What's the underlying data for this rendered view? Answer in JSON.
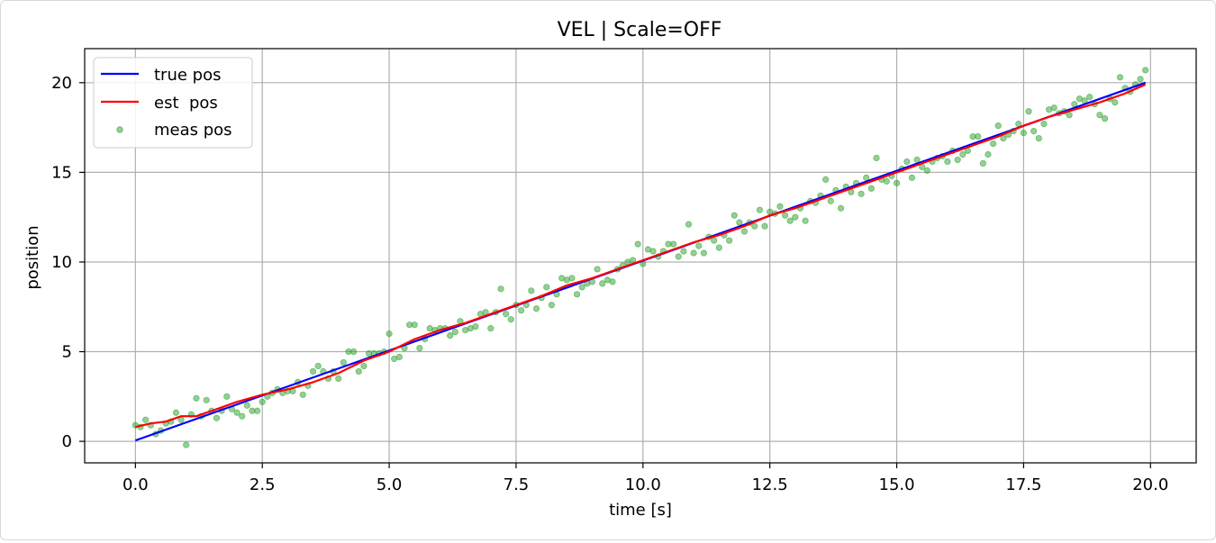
{
  "chart_data": {
    "type": "line",
    "title": "VEL  |  Scale=OFF",
    "xlabel": "time [s]",
    "ylabel": "position",
    "xlim": [
      -1.0,
      20.9
    ],
    "ylim": [
      -1.2,
      21.9
    ],
    "xticks": [
      0.0,
      2.5,
      5.0,
      7.5,
      10.0,
      12.5,
      15.0,
      17.5,
      20.0
    ],
    "xtick_labels": [
      "0.0",
      "2.5",
      "5.0",
      "7.5",
      "10.0",
      "12.5",
      "15.0",
      "17.5",
      "20.0"
    ],
    "yticks": [
      0,
      5,
      10,
      15,
      20
    ],
    "ytick_labels": [
      "0",
      "5",
      "10",
      "15",
      "20"
    ],
    "grid": true,
    "legend_position": "top-left",
    "legend": [
      {
        "label": "true pos",
        "kind": "line",
        "color": "#0000ff"
      },
      {
        "label": "est  pos",
        "kind": "line",
        "color": "#ff0000"
      },
      {
        "label": "meas pos",
        "kind": "scatter",
        "color": "#2ca02c"
      }
    ],
    "series": [
      {
        "name": "true pos",
        "kind": "line",
        "color": "#0000ff",
        "x": [
          0.0,
          19.9
        ],
        "y": [
          0.05,
          20.0
        ]
      },
      {
        "name": "est  pos",
        "kind": "line",
        "color": "#ff0000",
        "x": [
          0.0,
          0.3,
          0.6,
          0.9,
          1.2,
          1.5,
          2.0,
          2.5,
          3.0,
          3.5,
          4.0,
          4.5,
          5.0,
          5.5,
          6.0,
          6.5,
          7.0,
          7.5,
          8.0,
          8.5,
          9.0,
          9.5,
          10.0,
          10.5,
          11.0,
          11.5,
          12.0,
          12.5,
          13.0,
          13.5,
          14.0,
          14.5,
          15.0,
          15.5,
          16.0,
          16.5,
          17.0,
          17.5,
          18.0,
          18.5,
          19.0,
          19.5,
          19.9
        ],
        "y": [
          0.8,
          1.0,
          1.1,
          1.4,
          1.4,
          1.7,
          2.2,
          2.6,
          2.9,
          3.3,
          3.8,
          4.5,
          5.0,
          5.7,
          6.2,
          6.6,
          7.1,
          7.6,
          8.1,
          8.7,
          9.1,
          9.6,
          10.1,
          10.6,
          11.1,
          11.5,
          12.0,
          12.6,
          13.0,
          13.5,
          14.0,
          14.5,
          15.0,
          15.5,
          16.0,
          16.5,
          17.0,
          17.6,
          18.1,
          18.5,
          18.9,
          19.4,
          19.9
        ]
      },
      {
        "name": "meas pos",
        "kind": "scatter",
        "color": "#2ca02c",
        "x": [
          0.0,
          0.1,
          0.2,
          0.3,
          0.4,
          0.5,
          0.6,
          0.7,
          0.8,
          0.9,
          1.0,
          1.1,
          1.2,
          1.3,
          1.4,
          1.5,
          1.6,
          1.7,
          1.8,
          1.9,
          2.0,
          2.1,
          2.2,
          2.3,
          2.4,
          2.5,
          2.6,
          2.7,
          2.8,
          2.9,
          3.0,
          3.1,
          3.2,
          3.3,
          3.4,
          3.5,
          3.6,
          3.7,
          3.8,
          3.9,
          4.0,
          4.1,
          4.2,
          4.3,
          4.4,
          4.5,
          4.6,
          4.7,
          4.8,
          4.9,
          5.0,
          5.1,
          5.2,
          5.3,
          5.4,
          5.5,
          5.6,
          5.7,
          5.8,
          5.9,
          6.0,
          6.1,
          6.2,
          6.3,
          6.4,
          6.5,
          6.6,
          6.7,
          6.8,
          6.9,
          7.0,
          7.1,
          7.2,
          7.3,
          7.4,
          7.5,
          7.6,
          7.7,
          7.8,
          7.9,
          8.0,
          8.1,
          8.2,
          8.3,
          8.4,
          8.5,
          8.6,
          8.7,
          8.8,
          8.9,
          9.0,
          9.1,
          9.2,
          9.3,
          9.4,
          9.5,
          9.6,
          9.7,
          9.8,
          9.9,
          10.0,
          10.1,
          10.2,
          10.3,
          10.4,
          10.5,
          10.6,
          10.7,
          10.8,
          10.9,
          11.0,
          11.1,
          11.2,
          11.3,
          11.4,
          11.5,
          11.6,
          11.7,
          11.8,
          11.9,
          12.0,
          12.1,
          12.2,
          12.3,
          12.4,
          12.5,
          12.6,
          12.7,
          12.8,
          12.9,
          13.0,
          13.1,
          13.2,
          13.3,
          13.4,
          13.5,
          13.6,
          13.7,
          13.8,
          13.9,
          14.0,
          14.1,
          14.2,
          14.3,
          14.4,
          14.5,
          14.6,
          14.7,
          14.8,
          14.9,
          15.0,
          15.1,
          15.2,
          15.3,
          15.4,
          15.5,
          15.6,
          15.7,
          15.8,
          15.9,
          16.0,
          16.1,
          16.2,
          16.3,
          16.4,
          16.5,
          16.6,
          16.7,
          16.8,
          16.9,
          17.0,
          17.1,
          17.2,
          17.3,
          17.4,
          17.5,
          17.6,
          17.7,
          17.8,
          17.9,
          18.0,
          18.1,
          18.2,
          18.3,
          18.4,
          18.5,
          18.6,
          18.7,
          18.8,
          18.9,
          19.0,
          19.1,
          19.2,
          19.3,
          19.4,
          19.5,
          19.6,
          19.7,
          19.8,
          19.9
        ],
        "y": [
          0.9,
          0.8,
          1.2,
          0.9,
          0.4,
          0.6,
          1.0,
          1.1,
          1.6,
          1.2,
          -0.2,
          1.5,
          2.4,
          1.4,
          2.3,
          1.7,
          1.3,
          1.7,
          2.5,
          1.8,
          1.6,
          1.4,
          2.0,
          1.7,
          1.7,
          2.2,
          2.5,
          2.7,
          2.9,
          2.7,
          2.8,
          2.8,
          3.3,
          2.6,
          3.1,
          3.9,
          4.2,
          3.9,
          3.5,
          3.9,
          3.5,
          4.4,
          5.0,
          5.0,
          3.9,
          4.2,
          4.9,
          4.9,
          4.9,
          5.0,
          6.0,
          4.6,
          4.7,
          5.2,
          6.5,
          6.5,
          5.2,
          5.7,
          6.3,
          6.2,
          6.3,
          6.3,
          5.9,
          6.1,
          6.7,
          6.2,
          6.3,
          6.4,
          7.1,
          7.2,
          6.3,
          7.2,
          8.5,
          7.1,
          6.8,
          7.6,
          7.3,
          7.6,
          8.4,
          7.4,
          8.0,
          8.6,
          7.6,
          8.2,
          9.1,
          9.0,
          9.1,
          8.2,
          8.6,
          8.8,
          8.9,
          9.6,
          8.8,
          9.0,
          8.9,
          9.6,
          9.8,
          10.0,
          10.1,
          11.0,
          9.9,
          10.7,
          10.6,
          10.3,
          10.6,
          11.0,
          11.0,
          10.3,
          10.6,
          12.1,
          10.5,
          10.9,
          10.5,
          11.4,
          11.2,
          10.8,
          11.5,
          11.2,
          12.6,
          12.2,
          11.7,
          12.2,
          12.0,
          12.9,
          12.0,
          12.8,
          12.7,
          13.1,
          12.6,
          12.3,
          12.5,
          13.0,
          12.3,
          13.4,
          13.3,
          13.7,
          14.6,
          13.4,
          14.0,
          13.0,
          14.2,
          13.9,
          14.4,
          13.8,
          14.7,
          14.1,
          15.8,
          14.6,
          14.5,
          14.8,
          14.4,
          15.2,
          15.6,
          14.7,
          15.7,
          15.3,
          15.1,
          15.6,
          15.8,
          15.9,
          15.6,
          16.2,
          15.7,
          16.0,
          16.2,
          17.0,
          17.0,
          15.5,
          16.0,
          16.6,
          17.6,
          16.9,
          17.1,
          17.3,
          17.7,
          17.2,
          18.4,
          17.3,
          16.9,
          17.7,
          18.5,
          18.6,
          18.3,
          18.4,
          18.2,
          18.8,
          19.1,
          19.0,
          19.2,
          18.8,
          18.2,
          18.0,
          19.1,
          18.9,
          20.3,
          19.7,
          19.5,
          19.9,
          20.2,
          20.7
        ]
      }
    ]
  }
}
